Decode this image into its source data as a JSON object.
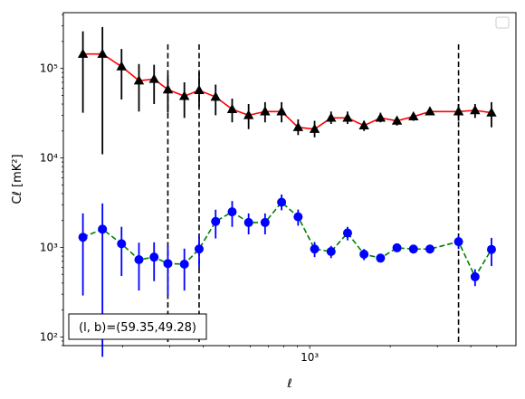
{
  "chart_data": {
    "type": "line",
    "xlabel": "ℓ",
    "ylabel": "Cℓ  [mK²]",
    "x_scale": "log",
    "y_scale": "log",
    "xlim": [
      120,
      5900
    ],
    "ylim": [
      80,
      420000
    ],
    "y_ticks": [
      {
        "value": 100,
        "label": "10²"
      },
      {
        "value": 1000,
        "label": "10³"
      },
      {
        "value": 10000,
        "label": "10⁴"
      },
      {
        "value": 100000,
        "label": "10⁵"
      }
    ],
    "x_ticks": [
      {
        "value": 1000,
        "label": "10³"
      }
    ],
    "vertical_lines": [
      295,
      386,
      3600
    ],
    "annotation": "(l, b)=(59.35,49.28)",
    "legend": "top-right",
    "series": [
      {
        "marker": "triangle",
        "line_color": "#ff0000",
        "marker_color": "#000000",
        "line_style": "solid",
        "points": [
          {
            "x": 142,
            "y": 145000,
            "lo": 32000,
            "hi": 260000
          },
          {
            "x": 168,
            "y": 145000,
            "lo": 11000,
            "hi": 290000
          },
          {
            "x": 198,
            "y": 105000,
            "lo": 45000,
            "hi": 165000
          },
          {
            "x": 230,
            "y": 73000,
            "lo": 33000,
            "hi": 112000
          },
          {
            "x": 262,
            "y": 76000,
            "lo": 40000,
            "hi": 110000
          },
          {
            "x": 295,
            "y": 58000,
            "lo": 32000,
            "hi": 84000
          },
          {
            "x": 340,
            "y": 49000,
            "lo": 28000,
            "hi": 70000
          },
          {
            "x": 386,
            "y": 57000,
            "lo": 37000,
            "hi": 91000
          },
          {
            "x": 445,
            "y": 48000,
            "lo": 30000,
            "hi": 66000
          },
          {
            "x": 513,
            "y": 35000,
            "lo": 25000,
            "hi": 46000
          },
          {
            "x": 591,
            "y": 30000,
            "lo": 21000,
            "hi": 40000
          },
          {
            "x": 681,
            "y": 33000,
            "lo": 25000,
            "hi": 42000
          },
          {
            "x": 785,
            "y": 33000,
            "lo": 25000,
            "hi": 42000
          },
          {
            "x": 905,
            "y": 22000,
            "lo": 18000,
            "hi": 27000
          },
          {
            "x": 1043,
            "y": 21000,
            "lo": 17000,
            "hi": 26000
          },
          {
            "x": 1202,
            "y": 28000,
            "lo": 24000,
            "hi": 33000
          },
          {
            "x": 1385,
            "y": 28000,
            "lo": 24000,
            "hi": 33000
          },
          {
            "x": 1596,
            "y": 23000,
            "lo": 20000,
            "hi": 26000
          },
          {
            "x": 1839,
            "y": 28000,
            "lo": 25000,
            "hi": 32000
          },
          {
            "x": 2119,
            "y": 26000,
            "lo": 23000,
            "hi": 28000
          },
          {
            "x": 2442,
            "y": 29000,
            "lo": 26000,
            "hi": 32000
          },
          {
            "x": 2814,
            "y": 33000,
            "lo": 30000,
            "hi": 36000
          },
          {
            "x": 3600,
            "y": 33000,
            "lo": 26000,
            "hi": 40000
          },
          {
            "x": 4150,
            "y": 34000,
            "lo": 28000,
            "hi": 40000
          },
          {
            "x": 4780,
            "y": 32000,
            "lo": 22000,
            "hi": 42000
          }
        ]
      },
      {
        "marker": "circle",
        "line_color": "#008000",
        "marker_color": "#0000ff",
        "line_style": "dashed",
        "points": [
          {
            "x": 142,
            "y": 1300,
            "lo": 290,
            "hi": 2400
          },
          {
            "x": 168,
            "y": 1600,
            "lo": 60,
            "hi": 3100
          },
          {
            "x": 198,
            "y": 1100,
            "lo": 480,
            "hi": 1700
          },
          {
            "x": 230,
            "y": 730,
            "lo": 330,
            "hi": 1130
          },
          {
            "x": 262,
            "y": 780,
            "lo": 420,
            "hi": 1140
          },
          {
            "x": 295,
            "y": 660,
            "lo": 290,
            "hi": 1030
          },
          {
            "x": 340,
            "y": 650,
            "lo": 330,
            "hi": 970
          },
          {
            "x": 386,
            "y": 960,
            "lo": 590,
            "hi": 1330
          },
          {
            "x": 445,
            "y": 1950,
            "lo": 1260,
            "hi": 2640
          },
          {
            "x": 513,
            "y": 2500,
            "lo": 1700,
            "hi": 3300
          },
          {
            "x": 591,
            "y": 1900,
            "lo": 1400,
            "hi": 2400
          },
          {
            "x": 681,
            "y": 1900,
            "lo": 1400,
            "hi": 2400
          },
          {
            "x": 785,
            "y": 3200,
            "lo": 2600,
            "hi": 3900
          },
          {
            "x": 905,
            "y": 2200,
            "lo": 1750,
            "hi": 2650
          },
          {
            "x": 1043,
            "y": 960,
            "lo": 780,
            "hi": 1150
          },
          {
            "x": 1202,
            "y": 900,
            "lo": 760,
            "hi": 1040
          },
          {
            "x": 1385,
            "y": 1450,
            "lo": 1200,
            "hi": 1700
          },
          {
            "x": 1596,
            "y": 840,
            "lo": 720,
            "hi": 960
          },
          {
            "x": 1839,
            "y": 760,
            "lo": 680,
            "hi": 850
          },
          {
            "x": 2119,
            "y": 990,
            "lo": 900,
            "hi": 1080
          },
          {
            "x": 2442,
            "y": 960,
            "lo": 880,
            "hi": 1040
          },
          {
            "x": 2814,
            "y": 960,
            "lo": 880,
            "hi": 1040
          },
          {
            "x": 3600,
            "y": 1160,
            "lo": 960,
            "hi": 1360
          },
          {
            "x": 4150,
            "y": 470,
            "lo": 370,
            "hi": 570
          },
          {
            "x": 4780,
            "y": 950,
            "lo": 620,
            "hi": 1280
          }
        ]
      }
    ]
  }
}
